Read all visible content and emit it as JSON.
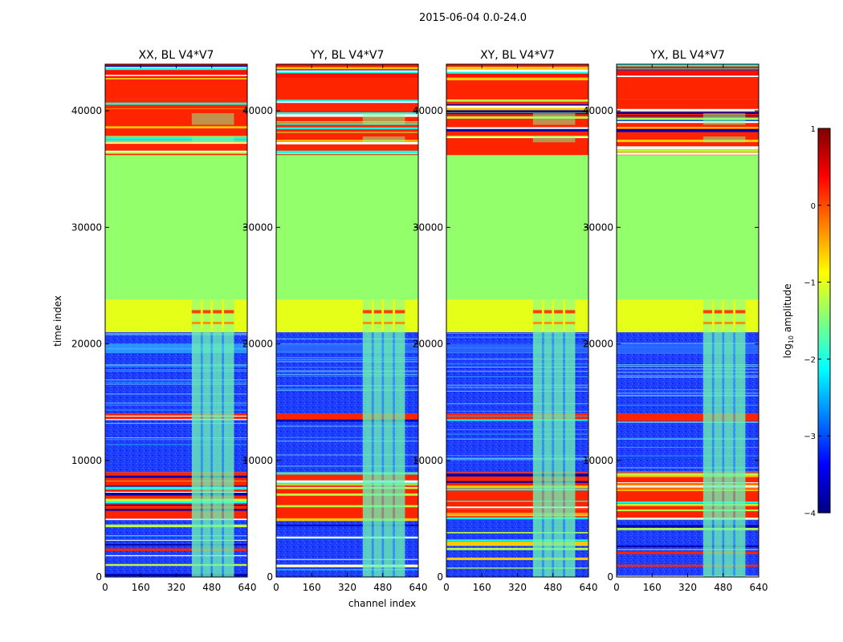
{
  "chart_data": {
    "type": "heatmap",
    "suptitle": "2015-06-04 0.0-24.0",
    "xlabel": "channel index",
    "ylabel": "time index",
    "xlim": [
      0,
      640
    ],
    "ylim": [
      0,
      44000
    ],
    "xticks": [
      0,
      160,
      320,
      480,
      640
    ],
    "yticks": [
      0,
      10000,
      20000,
      30000,
      40000
    ],
    "colorbar": {
      "label_main": "log",
      "label_sub": "10",
      "label_rest": " amplitude",
      "range": [
        -4,
        1
      ],
      "ticks": [
        -4,
        -3,
        -2,
        -1,
        0,
        1
      ],
      "colors": [
        "#00007f",
        "#0000ff",
        "#007fff",
        "#00ffff",
        "#7fff7f",
        "#ffff00",
        "#ff7f00",
        "#ff0000",
        "#7f0000"
      ]
    },
    "panels": [
      {
        "title": "XX, BL V4*V7"
      },
      {
        "title": "YY, BL V4*V7"
      },
      {
        "title": "XY, BL V4*V7"
      },
      {
        "title": "YX, BL V4*V7"
      }
    ],
    "bands": [
      {
        "y0": 0,
        "y1": 5000,
        "value": -3.2,
        "label": "blue noise floor with sparse horizontal lines"
      },
      {
        "y0": 5000,
        "y1": 9000,
        "value": 0.2,
        "label": "stripes of high amplitude"
      },
      {
        "y0": 9000,
        "y1": 13500,
        "value": -2.6,
        "label": "noisy region"
      },
      {
        "y0": 13500,
        "y1": 14000,
        "value": 0.2,
        "label": "high amplitude stripe"
      },
      {
        "y0": 14000,
        "y1": 21000,
        "value": -3.0,
        "label": "blue region with faint lines"
      },
      {
        "y0": 21000,
        "y1": 23800,
        "value": -1.0,
        "label": "yellow-green transition band"
      },
      {
        "y0": 23800,
        "y1": 36200,
        "value": -1.4,
        "label": "flat green block"
      },
      {
        "y0": 36200,
        "y1": 41000,
        "value": 0.2,
        "label": "many horizontal stripes"
      },
      {
        "y0": 41000,
        "y1": 42800,
        "value": 0.2,
        "label": "solid orange block"
      },
      {
        "y0": 42800,
        "y1": 44000,
        "value": 0.3,
        "label": "top stripes"
      }
    ],
    "rfi_channel_range": [
      390,
      580
    ]
  }
}
